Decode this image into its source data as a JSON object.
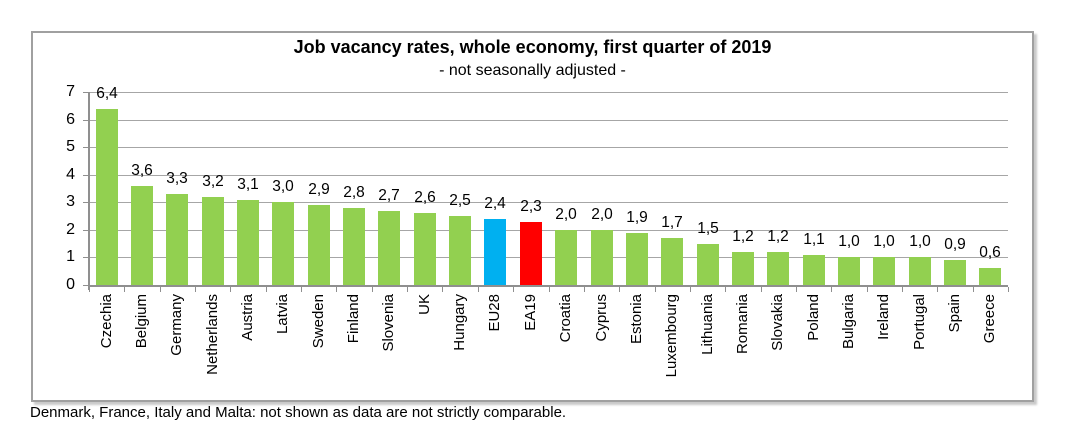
{
  "chart_data": {
    "type": "bar",
    "title": "Job vacancy rates, whole economy, first quarter of 2019",
    "subtitle": "- not seasonally adjusted -",
    "categories": [
      "Czechia",
      "Belgium",
      "Germany",
      "Netherlands",
      "Austria",
      "Latvia",
      "Sweden",
      "Finland",
      "Slovenia",
      "UK",
      "Hungary",
      "EU28",
      "EA19",
      "Croatia",
      "Cyprus",
      "Estonia",
      "Luxembourg",
      "Lithuania",
      "Romania",
      "Slovakia",
      "Poland",
      "Bulgaria",
      "Ireland",
      "Portugal",
      "Spain",
      "Greece"
    ],
    "values": [
      6.4,
      3.6,
      3.3,
      3.2,
      3.1,
      3.0,
      2.9,
      2.8,
      2.7,
      2.6,
      2.5,
      2.4,
      2.3,
      2.0,
      2.0,
      1.9,
      1.7,
      1.5,
      1.2,
      1.2,
      1.1,
      1.0,
      1.0,
      1.0,
      0.9,
      0.6
    ],
    "value_labels": [
      "6,4",
      "3,6",
      "3,3",
      "3,2",
      "3,1",
      "3,0",
      "2,9",
      "2,8",
      "2,7",
      "2,6",
      "2,5",
      "2,4",
      "2,3",
      "2,0",
      "2,0",
      "1,9",
      "1,7",
      "1,5",
      "1,2",
      "1,2",
      "1,1",
      "1,0",
      "1,0",
      "1,0",
      "0,9",
      "0,6"
    ],
    "bar_colors": {
      "default": "#92D050",
      "EU28": "#00B0F0",
      "EA19": "#FF0000"
    },
    "ylim": [
      0,
      7
    ],
    "yticks": [
      "7",
      "6",
      "5",
      "4",
      "3",
      "2",
      "1",
      "0"
    ],
    "grid": true,
    "legend": "none",
    "decimal_separator": ","
  },
  "colors": {
    "bar_green": "#92D050",
    "bar_blue": "#00B0F0",
    "bar_red": "#FF0000",
    "gridline": "#a6a6a6",
    "axis": "#8f8f8f",
    "frame_border": "#a0a0a0",
    "text": "#000000"
  },
  "footnote": "Denmark, France, Italy and Malta: not shown as data are not strictly comparable."
}
